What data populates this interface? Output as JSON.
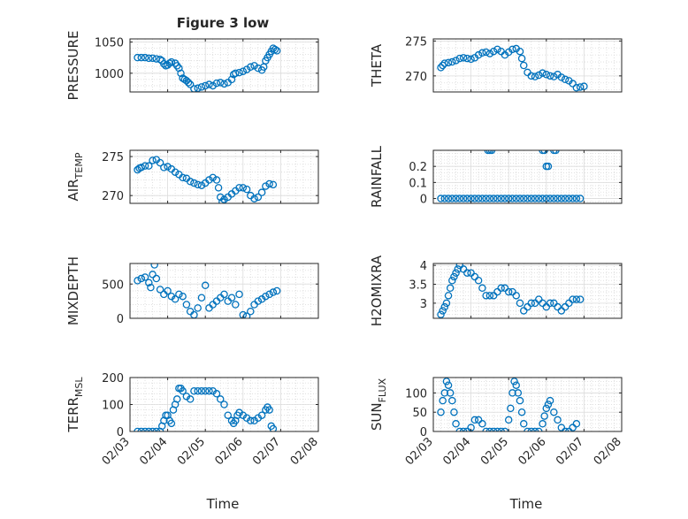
{
  "figure": {
    "title": "Figure 3 low",
    "xlabel": "Time",
    "marker_color": "#0072BD"
  },
  "chart_data": [
    {
      "type": "scatter",
      "name": "pressure-panel",
      "ylabel": "PRESSURE",
      "ylabel_sub": "",
      "xlim": [
        0,
        5
      ],
      "ylim": [
        970,
        1055
      ],
      "yticks": [
        1000,
        1050
      ],
      "xticks": [
        0,
        1,
        2,
        3,
        4,
        5
      ],
      "xticklabels": [],
      "x": [
        0.2,
        0.3,
        0.4,
        0.5,
        0.6,
        0.7,
        0.8,
        0.85,
        0.9,
        0.95,
        1.0,
        1.05,
        1.1,
        1.2,
        1.25,
        1.3,
        1.35,
        1.4,
        1.45,
        1.5,
        1.55,
        1.6,
        1.7,
        1.8,
        1.9,
        2.0,
        2.1,
        2.2,
        2.3,
        2.4,
        2.5,
        2.6,
        2.7,
        2.75,
        2.8,
        2.9,
        3.0,
        3.1,
        3.2,
        3.3,
        3.4,
        3.5,
        3.55,
        3.6,
        3.65,
        3.7,
        3.75,
        3.8,
        3.85,
        3.9
      ],
      "y": [
        1025,
        1025,
        1025,
        1024,
        1024,
        1023,
        1022,
        1020,
        1015,
        1012,
        1013,
        1016,
        1018,
        1016,
        1012,
        1008,
        1000,
        992,
        990,
        988,
        985,
        982,
        975,
        976,
        978,
        980,
        982,
        980,
        984,
        985,
        983,
        985,
        990,
        998,
        1000,
        1001,
        1003,
        1006,
        1010,
        1012,
        1008,
        1005,
        1010,
        1020,
        1025,
        1030,
        1035,
        1040,
        1038,
        1036
      ]
    },
    {
      "type": "scatter",
      "name": "theta-panel",
      "ylabel": "THETA",
      "ylabel_sub": "",
      "xlim": [
        0,
        5
      ],
      "ylim": [
        267.7,
        275.3
      ],
      "yticks": [
        270,
        275
      ],
      "xticks": [
        0,
        1,
        2,
        3,
        4,
        5
      ],
      "xticklabels": [],
      "x": [
        0.2,
        0.25,
        0.3,
        0.4,
        0.5,
        0.6,
        0.7,
        0.8,
        0.9,
        1.0,
        1.1,
        1.2,
        1.3,
        1.4,
        1.5,
        1.6,
        1.7,
        1.8,
        1.9,
        2.0,
        2.1,
        2.2,
        2.3,
        2.35,
        2.4,
        2.5,
        2.6,
        2.7,
        2.8,
        2.9,
        3.0,
        3.1,
        3.2,
        3.3,
        3.4,
        3.5,
        3.6,
        3.7,
        3.8,
        3.9,
        4.0
      ],
      "y": [
        271.2,
        271.5,
        271.8,
        271.9,
        272.0,
        272.2,
        272.5,
        272.6,
        272.5,
        272.4,
        272.6,
        273.0,
        273.3,
        273.4,
        273.2,
        273.5,
        273.8,
        273.5,
        273.0,
        273.4,
        273.8,
        273.9,
        273.5,
        272.5,
        271.5,
        270.5,
        270.0,
        269.9,
        270.1,
        270.4,
        270.2,
        270.0,
        269.9,
        270.2,
        269.8,
        269.5,
        269.3,
        268.9,
        268.3,
        268.4,
        268.5
      ]
    },
    {
      "type": "scatter",
      "name": "air-temp-panel",
      "ylabel": "AIR",
      "ylabel_sub": "TEMP",
      "xlim": [
        0,
        5
      ],
      "ylim": [
        269,
        275.8
      ],
      "yticks": [
        270,
        275
      ],
      "xticks": [
        0,
        1,
        2,
        3,
        4,
        5
      ],
      "xticklabels": [],
      "x": [
        0.2,
        0.25,
        0.3,
        0.4,
        0.5,
        0.6,
        0.7,
        0.8,
        0.9,
        1.0,
        1.1,
        1.2,
        1.3,
        1.4,
        1.5,
        1.6,
        1.7,
        1.8,
        1.9,
        2.0,
        2.1,
        2.2,
        2.3,
        2.35,
        2.4,
        2.45,
        2.5,
        2.6,
        2.7,
        2.8,
        2.9,
        3.0,
        3.1,
        3.2,
        3.3,
        3.4,
        3.5,
        3.6,
        3.7,
        3.8
      ],
      "y": [
        273.3,
        273.5,
        273.6,
        273.8,
        273.8,
        274.5,
        274.6,
        274.2,
        273.6,
        273.7,
        273.4,
        273.0,
        272.7,
        272.3,
        272.2,
        271.8,
        271.6,
        271.4,
        271.3,
        271.6,
        272.0,
        272.3,
        272.0,
        271.0,
        269.8,
        269.2,
        269.5,
        269.8,
        270.2,
        270.6,
        271.0,
        271.0,
        270.8,
        270.0,
        269.6,
        269.8,
        270.4,
        271.2,
        271.5,
        271.4
      ]
    },
    {
      "type": "scatter",
      "name": "rainfall-panel",
      "ylabel": "RAINFALL",
      "ylabel_sub": "",
      "xlim": [
        0,
        5
      ],
      "ylim": [
        -0.03,
        0.3
      ],
      "yticks": [
        0,
        0.1,
        0.2
      ],
      "xticks": [
        0,
        1,
        2,
        3,
        4,
        5
      ],
      "xticklabels": [],
      "x": [
        0.2,
        0.3,
        0.4,
        0.5,
        0.6,
        0.7,
        0.8,
        0.9,
        1.0,
        1.1,
        1.2,
        1.3,
        1.4,
        1.5,
        1.6,
        1.7,
        1.8,
        1.9,
        2.0,
        2.1,
        2.2,
        2.3,
        2.4,
        2.5,
        2.6,
        2.7,
        2.8,
        2.9,
        3.0,
        3.1,
        3.2,
        3.3,
        3.4,
        3.5,
        3.6,
        3.7,
        3.8,
        3.9,
        1.45,
        1.5,
        1.55,
        2.9,
        2.95,
        3.0,
        3.05,
        3.2,
        3.25
      ],
      "y": [
        0,
        0,
        0,
        0,
        0,
        0,
        0,
        0,
        0,
        0,
        0,
        0,
        0,
        0,
        0,
        0,
        0,
        0,
        0,
        0,
        0,
        0,
        0,
        0,
        0,
        0,
        0,
        0,
        0,
        0,
        0,
        0,
        0,
        0,
        0,
        0,
        0,
        0,
        0.3,
        0.3,
        0.3,
        0.3,
        0.3,
        0.2,
        0.2,
        0.3,
        0.3
      ]
    },
    {
      "type": "scatter",
      "name": "mixdepth-panel",
      "ylabel": "MIXDEPTH",
      "ylabel_sub": "",
      "xlim": [
        0,
        5
      ],
      "ylim": [
        0,
        800
      ],
      "yticks": [
        0,
        500
      ],
      "xticks": [
        0,
        1,
        2,
        3,
        4,
        5
      ],
      "xticklabels": [],
      "x": [
        0.2,
        0.3,
        0.4,
        0.5,
        0.55,
        0.6,
        0.65,
        0.7,
        0.8,
        0.9,
        1.0,
        1.1,
        1.2,
        1.3,
        1.4,
        1.5,
        1.6,
        1.7,
        1.8,
        1.9,
        2.0,
        2.1,
        2.2,
        2.3,
        2.4,
        2.5,
        2.6,
        2.7,
        2.8,
        2.9,
        3.0,
        3.1,
        3.2,
        3.3,
        3.4,
        3.5,
        3.6,
        3.7,
        3.8,
        3.9
      ],
      "y": [
        550,
        580,
        600,
        520,
        450,
        640,
        780,
        580,
        420,
        350,
        400,
        320,
        280,
        350,
        320,
        200,
        100,
        50,
        150,
        300,
        480,
        150,
        200,
        250,
        300,
        350,
        250,
        300,
        200,
        350,
        50,
        30,
        100,
        200,
        250,
        280,
        320,
        350,
        380,
        400
      ]
    },
    {
      "type": "scatter",
      "name": "h2omixra-panel",
      "ylabel": "H2OMIXRA",
      "ylabel_sub": "",
      "xlim": [
        0,
        5
      ],
      "ylim": [
        2.6,
        4.05
      ],
      "yticks": [
        3,
        3.5,
        4
      ],
      "xticks": [
        0,
        1,
        2,
        3,
        4,
        5
      ],
      "xticklabels": [],
      "x": [
        0.2,
        0.25,
        0.3,
        0.35,
        0.4,
        0.45,
        0.5,
        0.55,
        0.6,
        0.65,
        0.7,
        0.8,
        0.9,
        1.0,
        1.1,
        1.2,
        1.3,
        1.4,
        1.5,
        1.6,
        1.7,
        1.8,
        1.9,
        2.0,
        2.1,
        2.2,
        2.3,
        2.4,
        2.5,
        2.6,
        2.7,
        2.8,
        2.9,
        3.0,
        3.1,
        3.2,
        3.3,
        3.4,
        3.5,
        3.6,
        3.7,
        3.8,
        3.9
      ],
      "y": [
        2.7,
        2.8,
        2.9,
        3.0,
        3.2,
        3.4,
        3.6,
        3.7,
        3.8,
        3.9,
        4.0,
        3.9,
        3.8,
        3.8,
        3.7,
        3.6,
        3.4,
        3.2,
        3.2,
        3.2,
        3.3,
        3.4,
        3.4,
        3.3,
        3.3,
        3.2,
        3.0,
        2.8,
        2.9,
        3.0,
        3.0,
        3.1,
        3.0,
        2.9,
        3.0,
        3.0,
        2.9,
        2.8,
        2.9,
        3.0,
        3.1,
        3.1,
        3.1
      ]
    },
    {
      "type": "scatter",
      "name": "terr-msl-panel",
      "ylabel": "TERR",
      "ylabel_sub": "MSL",
      "xlim": [
        0,
        5
      ],
      "ylim": [
        0,
        200
      ],
      "yticks": [
        0,
        100,
        200
      ],
      "xticks": [
        0,
        1,
        2,
        3,
        4,
        5
      ],
      "xticklabels": [
        "02/03",
        "02/04",
        "02/05",
        "02/06",
        "02/07",
        "02/08"
      ],
      "x": [
        0.2,
        0.3,
        0.4,
        0.5,
        0.6,
        0.7,
        0.8,
        0.85,
        0.9,
        0.95,
        1.0,
        1.05,
        1.1,
        1.15,
        1.2,
        1.25,
        1.3,
        1.35,
        1.4,
        1.5,
        1.6,
        1.7,
        1.8,
        1.9,
        2.0,
        2.1,
        2.2,
        2.3,
        2.4,
        2.5,
        2.6,
        2.7,
        2.75,
        2.8,
        2.85,
        2.9,
        3.0,
        3.1,
        3.2,
        3.3,
        3.4,
        3.5,
        3.6,
        3.65,
        3.7,
        3.75,
        3.8
      ],
      "y": [
        0,
        0,
        0,
        0,
        0,
        0,
        0,
        20,
        40,
        60,
        60,
        40,
        30,
        80,
        100,
        120,
        160,
        160,
        150,
        130,
        120,
        150,
        150,
        150,
        150,
        150,
        150,
        140,
        120,
        100,
        60,
        40,
        30,
        40,
        60,
        70,
        60,
        50,
        40,
        40,
        50,
        60,
        80,
        90,
        80,
        20,
        10
      ]
    },
    {
      "type": "scatter",
      "name": "sun-flux-panel",
      "ylabel": "SUN",
      "ylabel_sub": "FLUX",
      "xlim": [
        0,
        5
      ],
      "ylim": [
        0,
        140
      ],
      "yticks": [
        0,
        50,
        100
      ],
      "xticks": [
        0,
        1,
        2,
        3,
        4,
        5
      ],
      "xticklabels": [
        "02/03",
        "02/04",
        "02/05",
        "02/06",
        "02/07",
        "02/08"
      ],
      "x": [
        0.2,
        0.25,
        0.3,
        0.35,
        0.4,
        0.45,
        0.5,
        0.55,
        0.6,
        0.7,
        0.8,
        0.9,
        1.0,
        1.1,
        1.2,
        1.3,
        1.4,
        1.5,
        1.6,
        1.7,
        1.8,
        1.9,
        2.0,
        2.05,
        2.1,
        2.15,
        2.2,
        2.25,
        2.3,
        2.35,
        2.4,
        2.5,
        2.6,
        2.7,
        2.8,
        2.9,
        2.95,
        3.0,
        3.05,
        3.1,
        3.2,
        3.3,
        3.4,
        3.5,
        3.6,
        3.7,
        3.8
      ],
      "y": [
        50,
        80,
        100,
        130,
        120,
        100,
        80,
        50,
        20,
        0,
        0,
        0,
        10,
        30,
        30,
        20,
        0,
        0,
        0,
        0,
        0,
        0,
        30,
        60,
        100,
        130,
        120,
        100,
        80,
        50,
        20,
        0,
        0,
        0,
        0,
        20,
        40,
        60,
        70,
        80,
        50,
        30,
        10,
        0,
        0,
        10,
        20
      ]
    }
  ]
}
